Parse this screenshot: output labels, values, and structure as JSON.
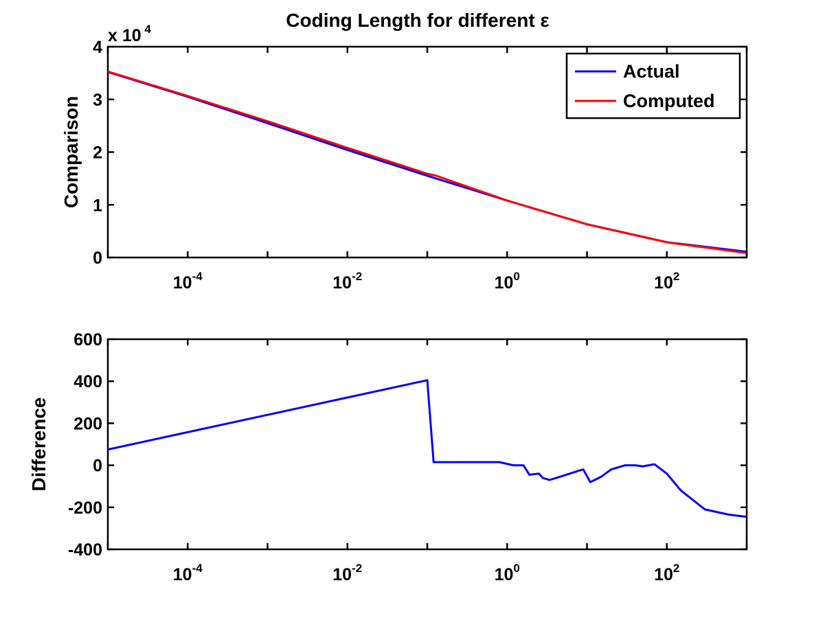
{
  "figure_title": "Coding Length for different ε",
  "chart_data": [
    {
      "type": "line",
      "title": "Coding Length for different ε",
      "ylabel": "Comparison",
      "xscale": "log",
      "xlim": [
        1e-05,
        1000
      ],
      "ylim": [
        0,
        40000
      ],
      "y_multiplier_label": "x 10",
      "y_multiplier_exp": "4",
      "x_tick_values": [
        0.0001,
        0.01,
        1,
        100
      ],
      "x_tick_labels": [
        {
          "base": "10",
          "exp": "-4"
        },
        {
          "base": "10",
          "exp": "-2"
        },
        {
          "base": "10",
          "exp": "0"
        },
        {
          "base": "10",
          "exp": "2"
        }
      ],
      "y_tick_values": [
        0,
        10000,
        20000,
        30000,
        40000
      ],
      "y_tick_labels": [
        "0",
        "1",
        "2",
        "3",
        "4"
      ],
      "legend": {
        "position": "top-right"
      },
      "series": [
        {
          "name": "Actual",
          "color": "#0000ff",
          "x": [
            1e-05,
            0.0001,
            0.001,
            0.01,
            0.1,
            1,
            10,
            100,
            1000
          ],
          "y": [
            35200,
            30500,
            25500,
            20400,
            15500,
            10800,
            6300,
            2900,
            1100
          ]
        },
        {
          "name": "Computed",
          "color": "#ff0000",
          "x": [
            1e-05,
            0.0001,
            0.001,
            0.01,
            0.1,
            0.13,
            1,
            10,
            100,
            1000
          ],
          "y": [
            35280,
            30650,
            25850,
            20800,
            15900,
            15500,
            10800,
            6290,
            2880,
            850
          ]
        }
      ]
    },
    {
      "type": "line",
      "ylabel": "Difference",
      "xscale": "log",
      "xlim": [
        1e-05,
        1000
      ],
      "ylim": [
        -400,
        600
      ],
      "x_tick_values": [
        0.0001,
        0.01,
        1,
        100
      ],
      "x_tick_labels": [
        {
          "base": "10",
          "exp": "-4"
        },
        {
          "base": "10",
          "exp": "-2"
        },
        {
          "base": "10",
          "exp": "0"
        },
        {
          "base": "10",
          "exp": "2"
        }
      ],
      "y_tick_values": [
        -400,
        -200,
        0,
        200,
        400,
        600
      ],
      "y_tick_labels": [
        "-400",
        "-200",
        "0",
        "200",
        "400",
        "600"
      ],
      "series": [
        {
          "color": "#0000ff",
          "x": [
            1e-05,
            0.1,
            0.12,
            0.5,
            0.8,
            1.2,
            1.6,
            1.9,
            2.5,
            2.8,
            3.4,
            5,
            8,
            9,
            11,
            15,
            20,
            30,
            40,
            50,
            70,
            100,
            150,
            300,
            600,
            1000
          ],
          "y": [
            75,
            405,
            15,
            15,
            15,
            0,
            0,
            -45,
            -40,
            -60,
            -70,
            -50,
            -25,
            -20,
            -80,
            -55,
            -20,
            0,
            0,
            -5,
            5,
            -40,
            -120,
            -210,
            -235,
            -245
          ]
        }
      ]
    }
  ]
}
